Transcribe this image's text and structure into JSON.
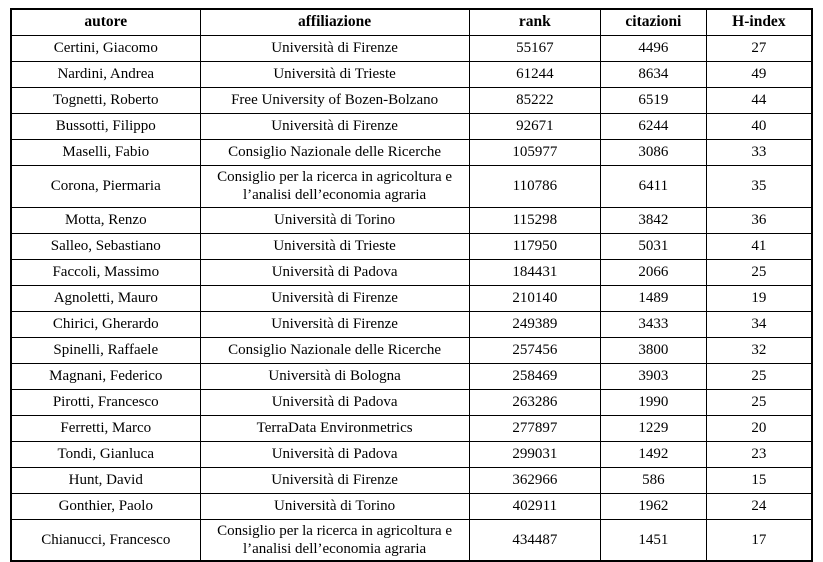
{
  "table": {
    "columns": [
      {
        "key": "autore",
        "label": "autore"
      },
      {
        "key": "affiliazione",
        "label": "affiliazione"
      },
      {
        "key": "rank",
        "label": "rank"
      },
      {
        "key": "citazioni",
        "label": "citazioni"
      },
      {
        "key": "h_index",
        "label": "H-index"
      }
    ],
    "rows": [
      [
        "Certini, Giacomo",
        "Università di Firenze",
        "55167",
        "4496",
        "27"
      ],
      [
        "Nardini, Andrea",
        "Università di Trieste",
        "61244",
        "8634",
        "49"
      ],
      [
        "Tognetti, Roberto",
        "Free University of Bozen-Bolzano",
        "85222",
        "6519",
        "44"
      ],
      [
        "Bussotti, Filippo",
        "Università di Firenze",
        "92671",
        "6244",
        "40"
      ],
      [
        "Maselli, Fabio",
        "Consiglio Nazionale delle Ricerche",
        "105977",
        "3086",
        "33"
      ],
      [
        "Corona, Piermaria",
        "Consiglio per la ricerca in agricoltura e l’analisi dell’economia agraria",
        "110786",
        "6411",
        "35"
      ],
      [
        "Motta, Renzo",
        "Università di Torino",
        "115298",
        "3842",
        "36"
      ],
      [
        "Salleo, Sebastiano",
        "Università di Trieste",
        "117950",
        "5031",
        "41"
      ],
      [
        "Faccoli, Massimo",
        "Università di Padova",
        "184431",
        "2066",
        "25"
      ],
      [
        "Agnoletti, Mauro",
        "Università di Firenze",
        "210140",
        "1489",
        "19"
      ],
      [
        "Chirici, Gherardo",
        "Università di Firenze",
        "249389",
        "3433",
        "34"
      ],
      [
        "Spinelli, Raffaele",
        "Consiglio Nazionale delle Ricerche",
        "257456",
        "3800",
        "32"
      ],
      [
        "Magnani, Federico",
        "Università di Bologna",
        "258469",
        "3903",
        "25"
      ],
      [
        "Pirotti, Francesco",
        "Università di Padova",
        "263286",
        "1990",
        "25"
      ],
      [
        "Ferretti, Marco",
        "TerraData Environmetrics",
        "277897",
        "1229",
        "20"
      ],
      [
        "Tondi, Gianluca",
        "Università di Padova",
        "299031",
        "1492",
        "23"
      ],
      [
        "Hunt, David",
        "Università di Firenze",
        "362966",
        "586",
        "15"
      ],
      [
        "Gonthier, Paolo",
        "Università di Torino",
        "402911",
        "1962",
        "24"
      ],
      [
        "Chianucci, Francesco",
        "Consiglio per la ricerca in agricoltura e l’analisi dell’economia agraria",
        "434487",
        "1451",
        "17"
      ]
    ]
  }
}
